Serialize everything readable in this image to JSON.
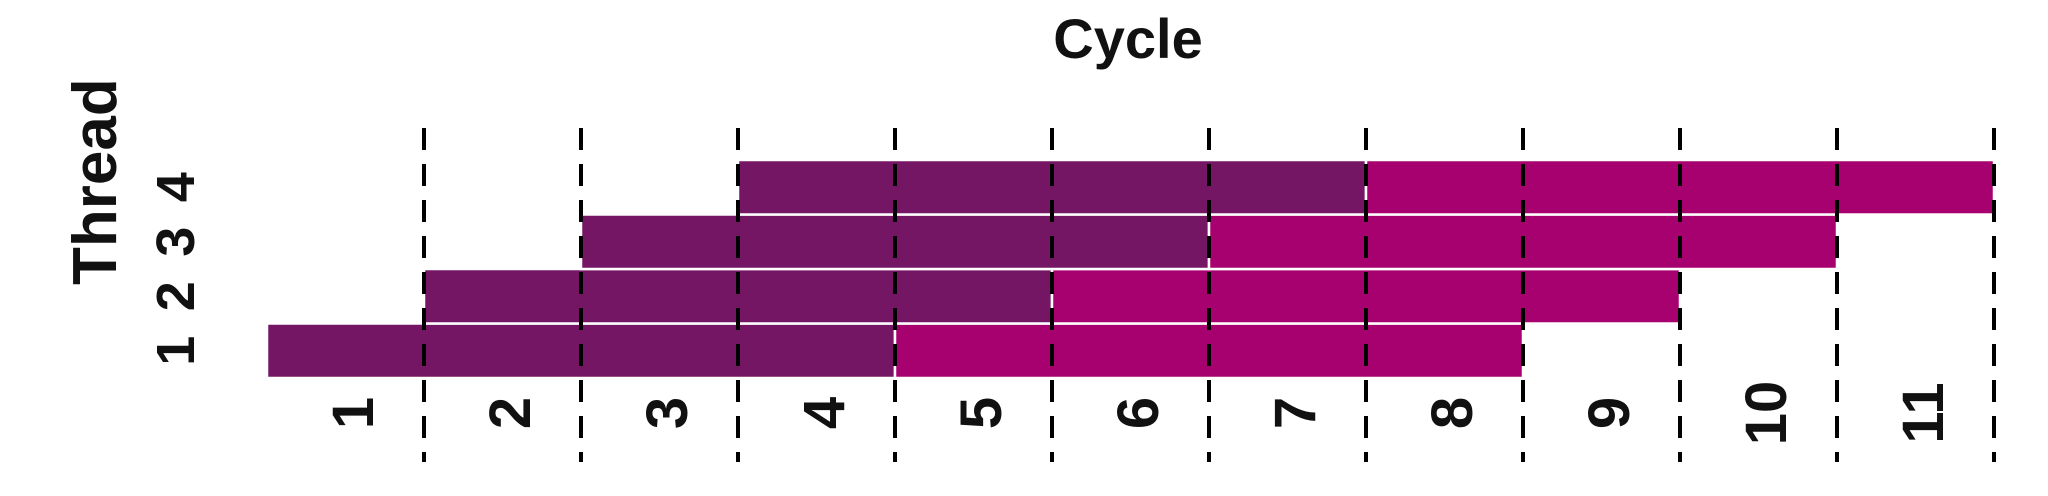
{
  "chart_data": {
    "type": "timeline",
    "title": "Cycle",
    "ylabel": "Thread",
    "cycle_labels": [
      "1",
      "2",
      "3",
      "4",
      "5",
      "6",
      "7",
      "8",
      "9",
      "10",
      "11"
    ],
    "thread_labels": [
      "1",
      "2",
      "3",
      "4"
    ],
    "x_range": [
      0,
      11
    ],
    "phase_colors": {
      "A": "#741664",
      "B": "#a7006f"
    },
    "bars": [
      {
        "thread": "1",
        "phase": "A",
        "start": 0,
        "end": 4
      },
      {
        "thread": "1",
        "phase": "B",
        "start": 4,
        "end": 8
      },
      {
        "thread": "2",
        "phase": "A",
        "start": 1,
        "end": 5
      },
      {
        "thread": "2",
        "phase": "B",
        "start": 5,
        "end": 9
      },
      {
        "thread": "3",
        "phase": "A",
        "start": 2,
        "end": 6
      },
      {
        "thread": "3",
        "phase": "B",
        "start": 6,
        "end": 10
      },
      {
        "thread": "4",
        "phase": "A",
        "start": 3,
        "end": 7
      },
      {
        "thread": "4",
        "phase": "B",
        "start": 7,
        "end": 11
      }
    ]
  }
}
